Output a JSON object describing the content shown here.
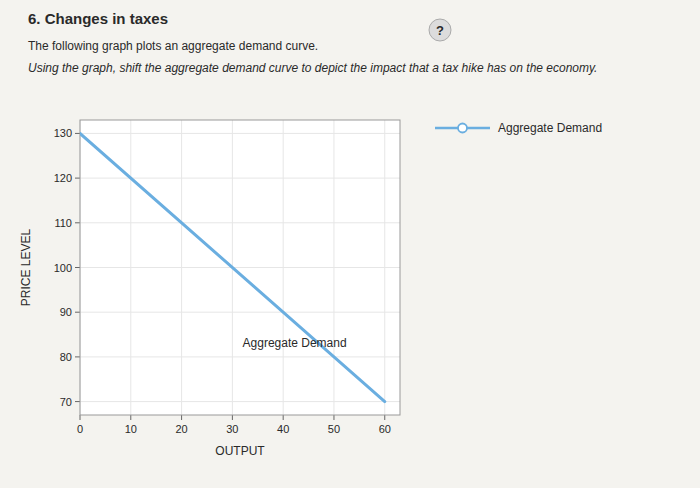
{
  "chart_data": {
    "type": "line",
    "title": "6. Changes in taxes",
    "subtitle": [
      "The following graph plots an aggregate demand curve.",
      "Using the graph, shift the aggregate demand curve to depict the impact that a tax hike has on the economy."
    ],
    "x_label": "OUTPUT",
    "y_label": "PRICE LEVEL",
    "x": [
      0,
      60
    ],
    "series": [
      {
        "name": "Aggregate Demand",
        "color": "#6aaee0",
        "values": [
          130,
          70
        ],
        "marker": "circle"
      }
    ],
    "xlim": [
      0,
      63
    ],
    "ylim": [
      67,
      133
    ],
    "xticks": [
      0,
      10,
      20,
      30,
      40,
      50,
      60
    ],
    "yticks": [
      70,
      80,
      90,
      100,
      110,
      120,
      130
    ],
    "grid": true,
    "legend": "right",
    "annotations": [
      {
        "text": "Aggregate Demand",
        "x": 32,
        "y": 85
      },
      {
        "text": "?"
      }
    ]
  }
}
